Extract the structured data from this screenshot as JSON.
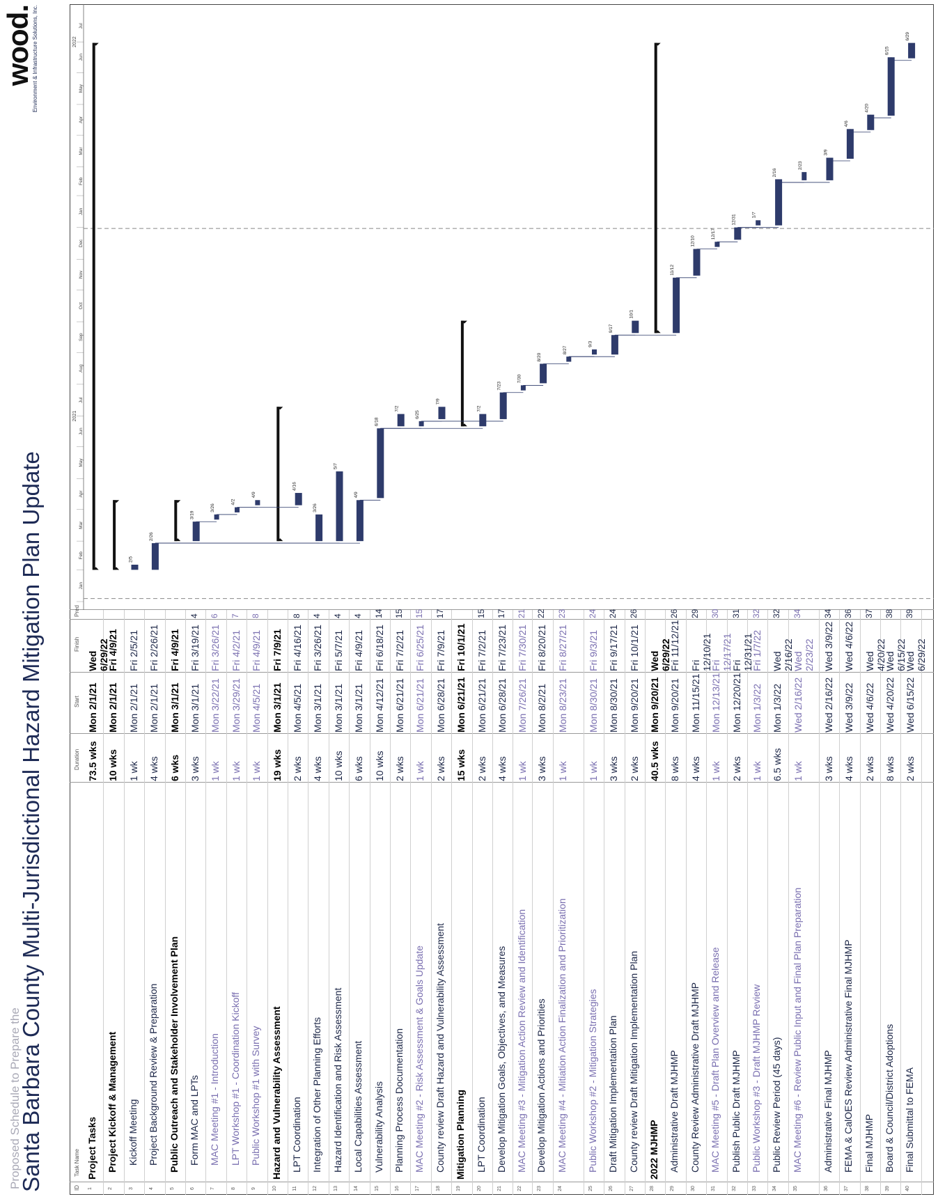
{
  "header": {
    "subtitle": "Proposed Schedule to Prepare the",
    "title": "Santa Barbara County Multi-Jurisdictional Hazard Mitigation Plan Update",
    "logo_word": "wood.",
    "logo_tagline": "Environment & Infrastructure Solutions, Inc."
  },
  "table": {
    "columns": {
      "id": "ID",
      "name": "Task Name",
      "duration": "Duration",
      "start": "Start",
      "finish": "Finish",
      "pred": "Pred"
    },
    "rows": [
      {
        "id": "1",
        "name": "Project Tasks",
        "duration": "73.5 wks",
        "start": "Mon 2/1/21",
        "finish": "Wed 6/29/22",
        "pred": "",
        "kind": "summary",
        "indent": 0
      },
      {
        "id": "2",
        "name": "Project Kickoff & Management",
        "duration": "10 wks",
        "start": "Mon 2/1/21",
        "finish": "Fri 4/9/21",
        "pred": "",
        "kind": "summary",
        "indent": 1
      },
      {
        "id": "3",
        "name": "Kickoff Meeting",
        "duration": "1 wk",
        "start": "Mon 2/1/21",
        "finish": "Fri 2/5/21",
        "pred": "",
        "kind": "task",
        "indent": 2
      },
      {
        "id": "4",
        "name": "Project Background Review & Preparation",
        "duration": "4 wks",
        "start": "Mon 2/1/21",
        "finish": "Fri 2/26/21",
        "pred": "",
        "kind": "task",
        "indent": 2
      },
      {
        "id": "5",
        "name": "Public Outreach and Stakeholder Involvement Plan",
        "duration": "6 wks",
        "start": "Mon 3/1/21",
        "finish": "Fri 4/9/21",
        "pred": "",
        "kind": "summary",
        "indent": 1
      },
      {
        "id": "6",
        "name": "Form MAC and LPTs",
        "duration": "3 wks",
        "start": "Mon 3/1/21",
        "finish": "Fri 3/19/21",
        "pred": "4",
        "kind": "task",
        "indent": 2
      },
      {
        "id": "7",
        "name": "MAC Meeting #1 - Introduction",
        "duration": "1 wk",
        "start": "Mon 3/22/21",
        "finish": "Fri 3/26/21",
        "pred": "6",
        "kind": "milestone",
        "indent": 2
      },
      {
        "id": "8",
        "name": "LPT Workshop #1 - Coordination Kickoff",
        "duration": "1 wk",
        "start": "Mon 3/29/21",
        "finish": "Fri 4/2/21",
        "pred": "7",
        "kind": "milestone",
        "indent": 2
      },
      {
        "id": "9",
        "name": "Public Workshop #1 with Survey",
        "duration": "1 wk",
        "start": "Mon 4/5/21",
        "finish": "Fri 4/9/21",
        "pred": "8",
        "kind": "milestone",
        "indent": 2
      },
      {
        "id": "10",
        "name": "Hazard and Vulnerability Assessment",
        "duration": "19 wks",
        "start": "Mon 3/1/21",
        "finish": "Fri 7/9/21",
        "pred": "",
        "kind": "summary",
        "indent": 0
      },
      {
        "id": "11",
        "name": "LPT Coordination",
        "duration": "2 wks",
        "start": "Mon 4/5/21",
        "finish": "Fri 4/16/21",
        "pred": "8",
        "kind": "task",
        "indent": 1
      },
      {
        "id": "12",
        "name": "Integration of Other Planning Efforts",
        "duration": "4 wks",
        "start": "Mon 3/1/21",
        "finish": "Fri 3/26/21",
        "pred": "4",
        "kind": "task",
        "indent": 1
      },
      {
        "id": "13",
        "name": "Hazard Identification and Risk Assessment",
        "duration": "10 wks",
        "start": "Mon 3/1/21",
        "finish": "Fri 5/7/21",
        "pred": "4",
        "kind": "task",
        "indent": 1
      },
      {
        "id": "14",
        "name": "Local Capabilities Assessment",
        "duration": "6 wks",
        "start": "Mon 3/1/21",
        "finish": "Fri 4/9/21",
        "pred": "4",
        "kind": "task",
        "indent": 1
      },
      {
        "id": "15",
        "name": "Vulnerability Analysis",
        "duration": "10 wks",
        "start": "Mon 4/12/21",
        "finish": "Fri 6/18/21",
        "pred": "14",
        "kind": "task",
        "indent": 1
      },
      {
        "id": "16",
        "name": "Planning Process Documentation",
        "duration": "2 wks",
        "start": "Mon 6/21/21",
        "finish": "Fri 7/2/21",
        "pred": "15",
        "kind": "task",
        "indent": 1
      },
      {
        "id": "17",
        "name": "MAC Meeting #2 - Risk Assessment & Goals Update",
        "duration": "1 wk",
        "start": "Mon 6/21/21",
        "finish": "Fri 6/25/21",
        "pred": "15",
        "kind": "milestone",
        "indent": 1
      },
      {
        "id": "18",
        "name": "County review Draft Hazard and Vulnerability Assessment",
        "duration": "2 wks",
        "start": "Mon 6/28/21",
        "finish": "Fri 7/9/21",
        "pred": "17",
        "kind": "task",
        "indent": 1
      },
      {
        "id": "19",
        "name": "Mitigation Planning",
        "duration": "15 wks",
        "start": "Mon 6/21/21",
        "finish": "Fri 10/1/21",
        "pred": "",
        "kind": "summary",
        "indent": 0
      },
      {
        "id": "20",
        "name": "LPT Coordination",
        "duration": "2 wks",
        "start": "Mon 6/21/21",
        "finish": "Fri 7/2/21",
        "pred": "15",
        "kind": "task",
        "indent": 1
      },
      {
        "id": "21",
        "name": "Develop Mitigation Goals, Objectives, and Measures",
        "duration": "4 wks",
        "start": "Mon 6/28/21",
        "finish": "Fri 7/23/21",
        "pred": "17",
        "kind": "task",
        "indent": 1
      },
      {
        "id": "22",
        "name": "MAC Meeting #3 - Mitigation Action Review and Identification",
        "duration": "1 wk",
        "start": "Mon 7/26/21",
        "finish": "Fri 7/30/21",
        "pred": "21",
        "kind": "milestone",
        "indent": 1
      },
      {
        "id": "23",
        "name": "Develop Mitigation Actions and Priorities",
        "duration": "3 wks",
        "start": "Mon 8/2/21",
        "finish": "Fri 8/20/21",
        "pred": "22",
        "kind": "task",
        "indent": 1
      },
      {
        "id": "24",
        "name": "MAC Meeting #4 - Mitiation Action Finalization and Prioritization",
        "duration": "1 wk",
        "start": "Mon 8/23/21",
        "finish": "Fri 8/27/21",
        "pred": "23",
        "kind": "milestone",
        "indent": 1
      },
      {
        "id": "25",
        "name": "Public Workshop #2 - Mitigation Strategies",
        "duration": "1 wk",
        "start": "Mon 8/30/21",
        "finish": "Fri 9/3/21",
        "pred": "24",
        "kind": "milestone",
        "indent": 1
      },
      {
        "id": "26",
        "name": "Draft Mitigation Implementation Plan",
        "duration": "3 wks",
        "start": "Mon 8/30/21",
        "finish": "Fri 9/17/21",
        "pred": "24",
        "kind": "task",
        "indent": 1
      },
      {
        "id": "27",
        "name": "County review Draft Mitigation Implementation Plan",
        "duration": "2 wks",
        "start": "Mon 9/20/21",
        "finish": "Fri 10/1/21",
        "pred": "26",
        "kind": "task",
        "indent": 1
      },
      {
        "id": "28",
        "name": "2022 MJHMP",
        "duration": "40.5 wks",
        "start": "Mon 9/20/21",
        "finish": "Wed 6/29/22",
        "pred": "",
        "kind": "summary",
        "indent": 0
      },
      {
        "id": "29",
        "name": "Administrative Draft MJHMP",
        "duration": "8 wks",
        "start": "Mon 9/20/21",
        "finish": "Fri 11/12/21",
        "pred": "26",
        "kind": "task",
        "indent": 1
      },
      {
        "id": "30",
        "name": "County Review Administrative Draft MJHMP",
        "duration": "4 wks",
        "start": "Mon 11/15/21",
        "finish": "Fri 12/10/21",
        "pred": "29",
        "kind": "task",
        "indent": 1
      },
      {
        "id": "31",
        "name": "MAC Meeting #5 - Draft Plan Overview and Release",
        "duration": "1 wk",
        "start": "Mon 12/13/21",
        "finish": "Fri 12/17/21",
        "pred": "30",
        "kind": "milestone",
        "indent": 1
      },
      {
        "id": "32",
        "name": "Publish Public Draft MJHMP",
        "duration": "2 wks",
        "start": "Mon 12/20/21",
        "finish": "Fri 12/31/21",
        "pred": "31",
        "kind": "task",
        "indent": 1
      },
      {
        "id": "33",
        "name": "Public Workshop #3 - Draft MJHMP Review",
        "duration": "1 wk",
        "start": "Mon 1/3/22",
        "finish": "Fri 1/7/22",
        "pred": "32",
        "kind": "milestone",
        "indent": 1
      },
      {
        "id": "34",
        "name": "Public Review Period (45 days)",
        "duration": "6.5 wks",
        "start": "Mon 1/3/22",
        "finish": "Wed 2/16/22",
        "pred": "32",
        "kind": "task",
        "indent": 1
      },
      {
        "id": "35",
        "name": "MAC Meeting #6 - Review Public Input and Final Plan Preparation",
        "duration": "1 wk",
        "start": "Wed 2/16/22",
        "finish": "Wed 2/23/22",
        "pred": "34",
        "kind": "milestone",
        "indent": 1
      },
      {
        "id": "36",
        "name": "Administrative Final MJHMP",
        "duration": "3 wks",
        "start": "Wed 2/16/22",
        "finish": "Wed 3/9/22",
        "pred": "34",
        "kind": "task",
        "indent": 1
      },
      {
        "id": "37",
        "name": "FEMA & CalOES Review Administrative Final MJHMP",
        "duration": "4 wks",
        "start": "Wed 3/9/22",
        "finish": "Wed 4/6/22",
        "pred": "36",
        "kind": "task",
        "indent": 1
      },
      {
        "id": "38",
        "name": "Final MJHMP",
        "duration": "2 wks",
        "start": "Wed 4/6/22",
        "finish": "Wed 4/20/22",
        "pred": "37",
        "kind": "task",
        "indent": 1
      },
      {
        "id": "39",
        "name": "Board & Council/District Adoptions",
        "duration": "8 wks",
        "start": "Wed 4/20/22",
        "finish": "Wed 6/15/22",
        "pred": "38",
        "kind": "task",
        "indent": 1
      },
      {
        "id": "40",
        "name": "Final Submittal to FEMA",
        "duration": "2 wks",
        "start": "Wed 6/15/22",
        "finish": "Wed 6/29/22",
        "pred": "39",
        "kind": "task",
        "indent": 1
      }
    ]
  },
  "gantt": {
    "years": [
      "2021",
      "2022"
    ],
    "months": [
      "Jan",
      "Feb",
      "Mar",
      "Apr",
      "May",
      "Jun",
      "Jul",
      "Aug",
      "Sep",
      "Oct",
      "Nov",
      "Dec",
      "Jan",
      "Feb",
      "Mar",
      "Apr",
      "May",
      "Jun",
      "Jul"
    ],
    "bar_labels": {
      "3": "2/5",
      "4": "2/26",
      "6": "3/19",
      "7": "3/26",
      "8": "4/2",
      "9": "4/9",
      "11": "4/16",
      "12": "3/26",
      "13": "5/7",
      "14": "4/9",
      "15": "6/18",
      "16": "7/2",
      "17": "6/25",
      "18": "7/9",
      "20": "7/2",
      "21": "7/23",
      "22": "7/30",
      "23": "8/20",
      "24": "8/27",
      "25": "9/3",
      "26": "9/17",
      "27": "10/1",
      "29": "11/12",
      "30": "12/10",
      "31": "12/17",
      "32": "12/31",
      "33": "1/7",
      "34": "2/16",
      "35": "2/23",
      "36": "3/9",
      "37": "4/6",
      "38": "4/20",
      "39": "6/15",
      "40": "6/29"
    },
    "colors": {
      "bar": "#2e3b6b",
      "summary": "#111111",
      "link": "#2e3b6b",
      "today_line": "#888888"
    }
  }
}
